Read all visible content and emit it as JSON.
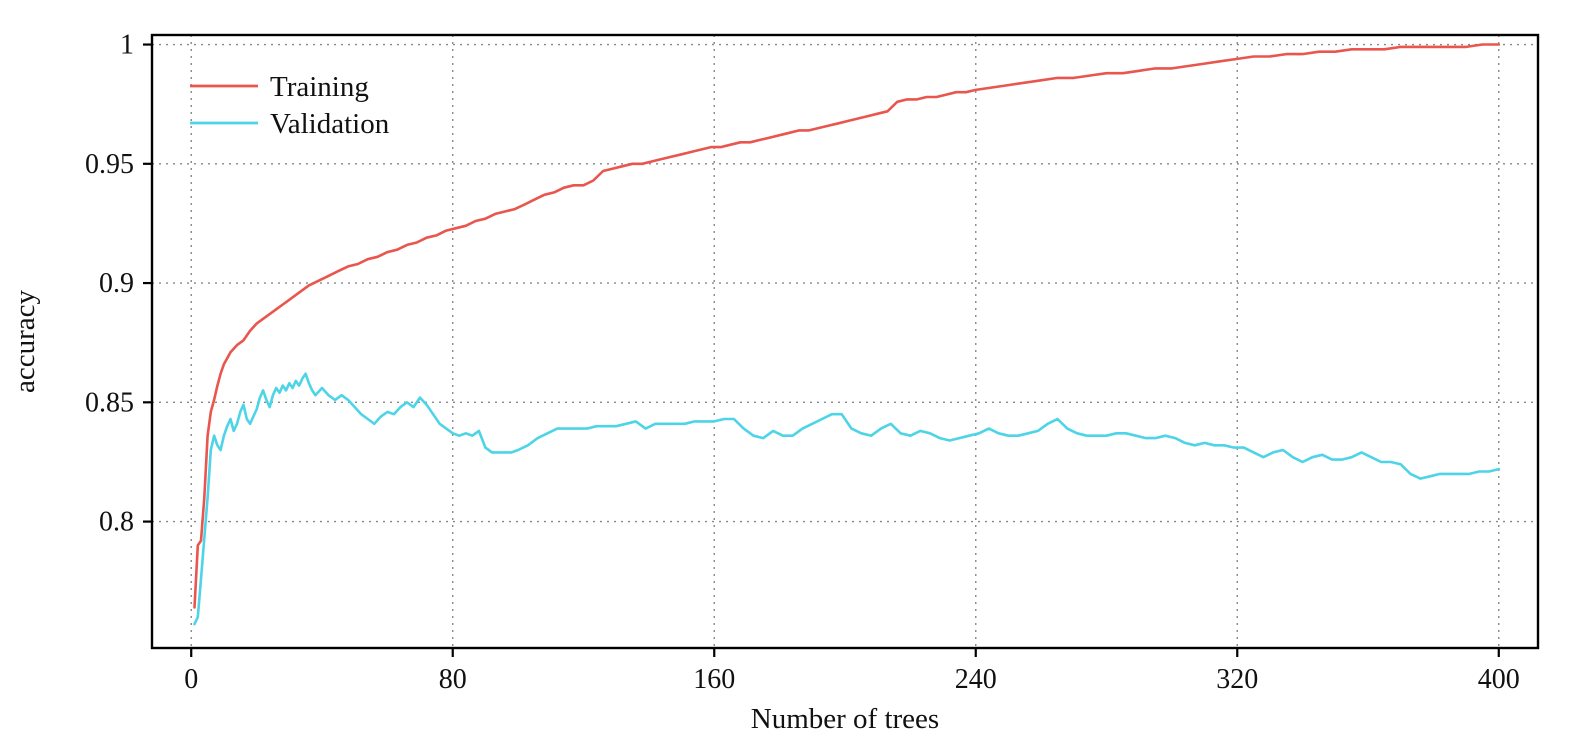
{
  "chart_data": {
    "type": "line",
    "title": "",
    "xlabel": "Number of trees",
    "ylabel": "accuracy",
    "xlim": [
      -12,
      412
    ],
    "ylim": [
      0.747,
      1.004
    ],
    "x_ticks": [
      0,
      80,
      160,
      240,
      320,
      400
    ],
    "x_tick_labels": [
      "0",
      "80",
      "160",
      "240",
      "320",
      "400"
    ],
    "y_ticks": [
      0.8,
      0.85,
      0.9,
      0.95,
      1
    ],
    "y_tick_labels": [
      "0.8",
      "0.85",
      "0.9",
      "0.95",
      "1"
    ],
    "grid": true,
    "grid_style": "dotted",
    "legend_position": "top-left",
    "colors": {
      "training": "#e8564d",
      "validation": "#4dd4e6",
      "grid": "#888888",
      "border": "#000000",
      "text": "#111111"
    },
    "series": [
      {
        "name": "Training",
        "color": "#e8564d",
        "points": [
          [
            1,
            0.764
          ],
          [
            2,
            0.79
          ],
          [
            3,
            0.792
          ],
          [
            4,
            0.81
          ],
          [
            5,
            0.836
          ],
          [
            6,
            0.846
          ],
          [
            7,
            0.851
          ],
          [
            8,
            0.857
          ],
          [
            9,
            0.862
          ],
          [
            10,
            0.866
          ],
          [
            12,
            0.871
          ],
          [
            14,
            0.874
          ],
          [
            16,
            0.876
          ],
          [
            18,
            0.88
          ],
          [
            20,
            0.883
          ],
          [
            22,
            0.885
          ],
          [
            24,
            0.887
          ],
          [
            26,
            0.889
          ],
          [
            28,
            0.891
          ],
          [
            30,
            0.893
          ],
          [
            33,
            0.896
          ],
          [
            36,
            0.899
          ],
          [
            39,
            0.901
          ],
          [
            42,
            0.903
          ],
          [
            45,
            0.905
          ],
          [
            48,
            0.907
          ],
          [
            51,
            0.908
          ],
          [
            54,
            0.91
          ],
          [
            57,
            0.911
          ],
          [
            60,
            0.913
          ],
          [
            63,
            0.914
          ],
          [
            66,
            0.916
          ],
          [
            69,
            0.917
          ],
          [
            72,
            0.919
          ],
          [
            75,
            0.92
          ],
          [
            78,
            0.922
          ],
          [
            81,
            0.923
          ],
          [
            84,
            0.924
          ],
          [
            87,
            0.926
          ],
          [
            90,
            0.927
          ],
          [
            93,
            0.929
          ],
          [
            96,
            0.93
          ],
          [
            99,
            0.931
          ],
          [
            102,
            0.933
          ],
          [
            105,
            0.935
          ],
          [
            108,
            0.937
          ],
          [
            111,
            0.938
          ],
          [
            114,
            0.94
          ],
          [
            117,
            0.941
          ],
          [
            120,
            0.941
          ],
          [
            123,
            0.943
          ],
          [
            126,
            0.947
          ],
          [
            129,
            0.948
          ],
          [
            132,
            0.949
          ],
          [
            135,
            0.95
          ],
          [
            138,
            0.95
          ],
          [
            141,
            0.951
          ],
          [
            144,
            0.952
          ],
          [
            147,
            0.953
          ],
          [
            150,
            0.954
          ],
          [
            153,
            0.955
          ],
          [
            156,
            0.956
          ],
          [
            159,
            0.957
          ],
          [
            162,
            0.957
          ],
          [
            165,
            0.958
          ],
          [
            168,
            0.959
          ],
          [
            171,
            0.959
          ],
          [
            174,
            0.96
          ],
          [
            177,
            0.961
          ],
          [
            180,
            0.962
          ],
          [
            183,
            0.963
          ],
          [
            186,
            0.964
          ],
          [
            189,
            0.964
          ],
          [
            192,
            0.965
          ],
          [
            195,
            0.966
          ],
          [
            198,
            0.967
          ],
          [
            201,
            0.968
          ],
          [
            204,
            0.969
          ],
          [
            207,
            0.97
          ],
          [
            210,
            0.971
          ],
          [
            213,
            0.972
          ],
          [
            216,
            0.976
          ],
          [
            219,
            0.977
          ],
          [
            222,
            0.977
          ],
          [
            225,
            0.978
          ],
          [
            228,
            0.978
          ],
          [
            231,
            0.979
          ],
          [
            234,
            0.98
          ],
          [
            237,
            0.98
          ],
          [
            240,
            0.981
          ],
          [
            245,
            0.982
          ],
          [
            250,
            0.983
          ],
          [
            255,
            0.984
          ],
          [
            260,
            0.985
          ],
          [
            265,
            0.986
          ],
          [
            270,
            0.986
          ],
          [
            275,
            0.987
          ],
          [
            280,
            0.988
          ],
          [
            285,
            0.988
          ],
          [
            290,
            0.989
          ],
          [
            295,
            0.99
          ],
          [
            300,
            0.99
          ],
          [
            305,
            0.991
          ],
          [
            310,
            0.992
          ],
          [
            315,
            0.993
          ],
          [
            320,
            0.994
          ],
          [
            325,
            0.995
          ],
          [
            330,
            0.995
          ],
          [
            335,
            0.996
          ],
          [
            340,
            0.996
          ],
          [
            345,
            0.997
          ],
          [
            350,
            0.997
          ],
          [
            355,
            0.998
          ],
          [
            360,
            0.998
          ],
          [
            365,
            0.998
          ],
          [
            370,
            0.999
          ],
          [
            375,
            0.999
          ],
          [
            380,
            0.999
          ],
          [
            385,
            0.999
          ],
          [
            390,
            0.999
          ],
          [
            395,
            1.0
          ],
          [
            400,
            1.0
          ]
        ]
      },
      {
        "name": "Validation",
        "color": "#4dd4e6",
        "points": [
          [
            1,
            0.757
          ],
          [
            2,
            0.76
          ],
          [
            3,
            0.776
          ],
          [
            4,
            0.793
          ],
          [
            5,
            0.81
          ],
          [
            6,
            0.83
          ],
          [
            7,
            0.836
          ],
          [
            8,
            0.832
          ],
          [
            9,
            0.83
          ],
          [
            10,
            0.836
          ],
          [
            11,
            0.84
          ],
          [
            12,
            0.843
          ],
          [
            13,
            0.838
          ],
          [
            14,
            0.841
          ],
          [
            15,
            0.846
          ],
          [
            16,
            0.849
          ],
          [
            17,
            0.843
          ],
          [
            18,
            0.841
          ],
          [
            19,
            0.844
          ],
          [
            20,
            0.847
          ],
          [
            21,
            0.852
          ],
          [
            22,
            0.855
          ],
          [
            23,
            0.851
          ],
          [
            24,
            0.848
          ],
          [
            25,
            0.853
          ],
          [
            26,
            0.856
          ],
          [
            27,
            0.854
          ],
          [
            28,
            0.857
          ],
          [
            29,
            0.855
          ],
          [
            30,
            0.858
          ],
          [
            31,
            0.856
          ],
          [
            32,
            0.859
          ],
          [
            33,
            0.857
          ],
          [
            34,
            0.86
          ],
          [
            35,
            0.862
          ],
          [
            36,
            0.858
          ],
          [
            37,
            0.855
          ],
          [
            38,
            0.853
          ],
          [
            40,
            0.856
          ],
          [
            42,
            0.853
          ],
          [
            44,
            0.851
          ],
          [
            46,
            0.853
          ],
          [
            48,
            0.851
          ],
          [
            50,
            0.848
          ],
          [
            52,
            0.845
          ],
          [
            54,
            0.843
          ],
          [
            56,
            0.841
          ],
          [
            58,
            0.844
          ],
          [
            60,
            0.846
          ],
          [
            62,
            0.845
          ],
          [
            64,
            0.848
          ],
          [
            66,
            0.85
          ],
          [
            68,
            0.848
          ],
          [
            70,
            0.852
          ],
          [
            72,
            0.849
          ],
          [
            74,
            0.845
          ],
          [
            76,
            0.841
          ],
          [
            78,
            0.839
          ],
          [
            80,
            0.837
          ],
          [
            82,
            0.836
          ],
          [
            84,
            0.837
          ],
          [
            86,
            0.836
          ],
          [
            88,
            0.838
          ],
          [
            90,
            0.831
          ],
          [
            92,
            0.829
          ],
          [
            95,
            0.829
          ],
          [
            98,
            0.829
          ],
          [
            100,
            0.83
          ],
          [
            103,
            0.832
          ],
          [
            106,
            0.835
          ],
          [
            109,
            0.837
          ],
          [
            112,
            0.839
          ],
          [
            115,
            0.839
          ],
          [
            118,
            0.839
          ],
          [
            121,
            0.839
          ],
          [
            124,
            0.84
          ],
          [
            127,
            0.84
          ],
          [
            130,
            0.84
          ],
          [
            133,
            0.841
          ],
          [
            136,
            0.842
          ],
          [
            139,
            0.839
          ],
          [
            142,
            0.841
          ],
          [
            145,
            0.841
          ],
          [
            148,
            0.841
          ],
          [
            151,
            0.841
          ],
          [
            154,
            0.842
          ],
          [
            157,
            0.842
          ],
          [
            160,
            0.842
          ],
          [
            163,
            0.843
          ],
          [
            166,
            0.843
          ],
          [
            169,
            0.839
          ],
          [
            172,
            0.836
          ],
          [
            175,
            0.835
          ],
          [
            178,
            0.838
          ],
          [
            181,
            0.836
          ],
          [
            184,
            0.836
          ],
          [
            187,
            0.839
          ],
          [
            190,
            0.841
          ],
          [
            193,
            0.843
          ],
          [
            196,
            0.845
          ],
          [
            199,
            0.845
          ],
          [
            202,
            0.839
          ],
          [
            205,
            0.837
          ],
          [
            208,
            0.836
          ],
          [
            211,
            0.839
          ],
          [
            214,
            0.841
          ],
          [
            217,
            0.837
          ],
          [
            220,
            0.836
          ],
          [
            223,
            0.838
          ],
          [
            226,
            0.837
          ],
          [
            229,
            0.835
          ],
          [
            232,
            0.834
          ],
          [
            235,
            0.835
          ],
          [
            238,
            0.836
          ],
          [
            241,
            0.837
          ],
          [
            244,
            0.839
          ],
          [
            247,
            0.837
          ],
          [
            250,
            0.836
          ],
          [
            253,
            0.836
          ],
          [
            256,
            0.837
          ],
          [
            259,
            0.838
          ],
          [
            262,
            0.841
          ],
          [
            265,
            0.843
          ],
          [
            268,
            0.839
          ],
          [
            271,
            0.837
          ],
          [
            274,
            0.836
          ],
          [
            277,
            0.836
          ],
          [
            280,
            0.836
          ],
          [
            283,
            0.837
          ],
          [
            286,
            0.837
          ],
          [
            289,
            0.836
          ],
          [
            292,
            0.835
          ],
          [
            295,
            0.835
          ],
          [
            298,
            0.836
          ],
          [
            301,
            0.835
          ],
          [
            304,
            0.833
          ],
          [
            307,
            0.832
          ],
          [
            310,
            0.833
          ],
          [
            313,
            0.832
          ],
          [
            316,
            0.832
          ],
          [
            319,
            0.831
          ],
          [
            322,
            0.831
          ],
          [
            325,
            0.829
          ],
          [
            328,
            0.827
          ],
          [
            331,
            0.829
          ],
          [
            334,
            0.83
          ],
          [
            337,
            0.827
          ],
          [
            340,
            0.825
          ],
          [
            343,
            0.827
          ],
          [
            346,
            0.828
          ],
          [
            349,
            0.826
          ],
          [
            352,
            0.826
          ],
          [
            355,
            0.827
          ],
          [
            358,
            0.829
          ],
          [
            361,
            0.827
          ],
          [
            364,
            0.825
          ],
          [
            367,
            0.825
          ],
          [
            370,
            0.824
          ],
          [
            373,
            0.82
          ],
          [
            376,
            0.818
          ],
          [
            379,
            0.819
          ],
          [
            382,
            0.82
          ],
          [
            385,
            0.82
          ],
          [
            388,
            0.82
          ],
          [
            391,
            0.82
          ],
          [
            394,
            0.821
          ],
          [
            397,
            0.821
          ],
          [
            400,
            0.822
          ]
        ]
      }
    ]
  }
}
